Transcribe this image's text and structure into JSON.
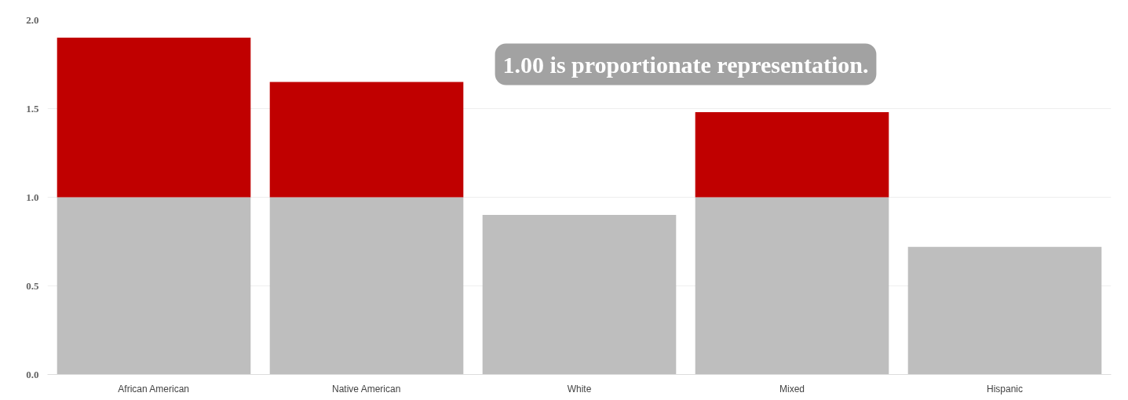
{
  "chart_data": {
    "type": "bar",
    "stacked": true,
    "categories": [
      "African American",
      "Native American",
      "White",
      "Mixed",
      "Hispanic"
    ],
    "series": [
      {
        "color": "#bebebe",
        "values": [
          1.0,
          1.0,
          0.9,
          1.0,
          0.72
        ]
      },
      {
        "color": "#c00000",
        "values": [
          0.9,
          0.65,
          null,
          0.48,
          null
        ]
      }
    ],
    "ylim": [
      0,
      2.0
    ],
    "yticks": [
      {
        "value": 0,
        "label": "0.0"
      },
      {
        "value": 0.5,
        "label": "0.5"
      },
      {
        "value": 1.0,
        "label": "1.0"
      },
      {
        "value": 1.5,
        "label": "1.5"
      },
      {
        "value": 2.0,
        "label": "2.0"
      }
    ],
    "grid": "y",
    "annotations": [
      "1.00 is proportionate representation."
    ]
  }
}
